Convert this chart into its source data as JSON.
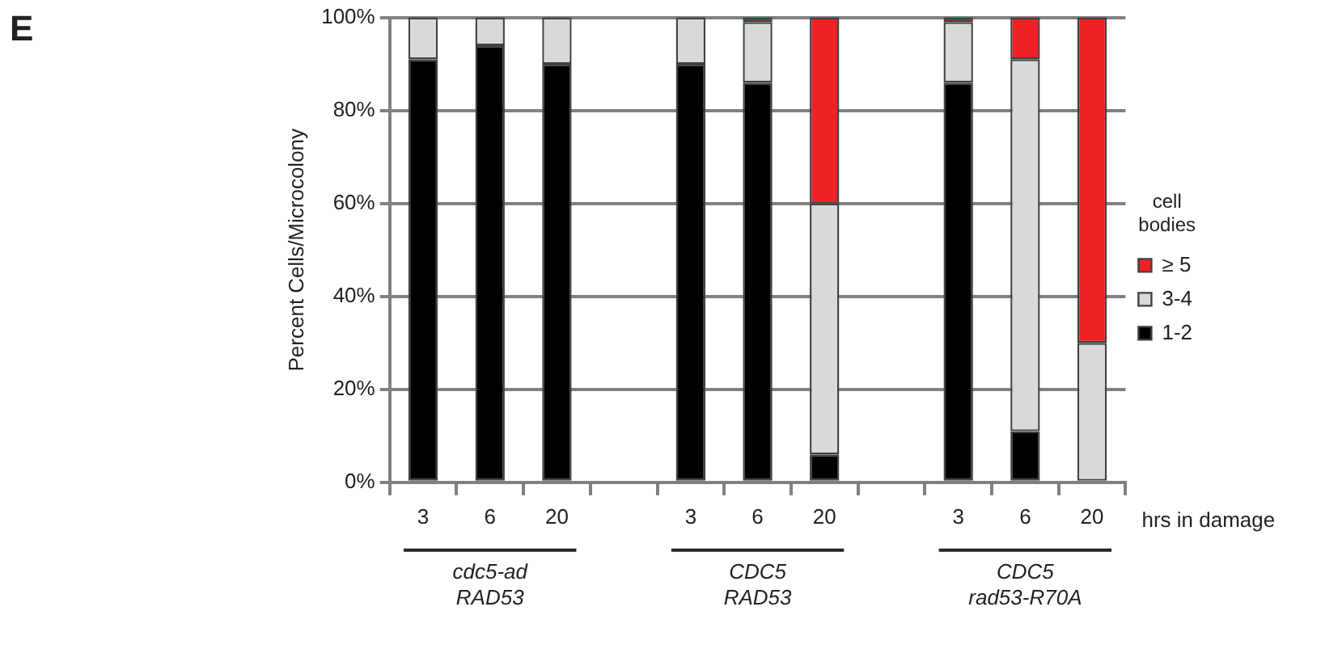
{
  "chart_data": {
    "type": "bar",
    "stacked": true,
    "categories": [
      "3",
      "6",
      "20",
      null,
      "3",
      "6",
      "20",
      null,
      "3",
      "6",
      "20"
    ],
    "series": [
      {
        "name": "1-2",
        "color": "#000000",
        "values": [
          91,
          94,
          90,
          null,
          90,
          86,
          6,
          null,
          86,
          11,
          0
        ]
      },
      {
        "name": "3-4",
        "color": "#d9d9d9",
        "values": [
          9,
          6,
          10,
          null,
          10,
          13,
          54,
          null,
          13,
          80,
          30
        ]
      },
      {
        "name": "≥ 5",
        "color": "#ed2224",
        "values": [
          0,
          0,
          0,
          null,
          0,
          1,
          40,
          null,
          1,
          9,
          70
        ]
      }
    ],
    "ylim": [
      0,
      100
    ],
    "yticks": [
      {
        "value": 0,
        "label": "0%"
      },
      {
        "value": 20,
        "label": "20%"
      },
      {
        "value": 40,
        "label": "40%"
      },
      {
        "value": 60,
        "label": "60%"
      },
      {
        "value": 80,
        "label": "80%"
      },
      {
        "value": 100,
        "label": "100%"
      }
    ],
    "ylabel": "Percent Cells/Microcolony",
    "xlabel": "hrs in damage",
    "legend_title": "cell bodies",
    "legend": "right",
    "grid": "y",
    "annotations": [
      "E",
      "cdc5-ad RAD53",
      "CDC5 RAD53",
      "CDC5 rad53-R70A"
    ]
  }
}
